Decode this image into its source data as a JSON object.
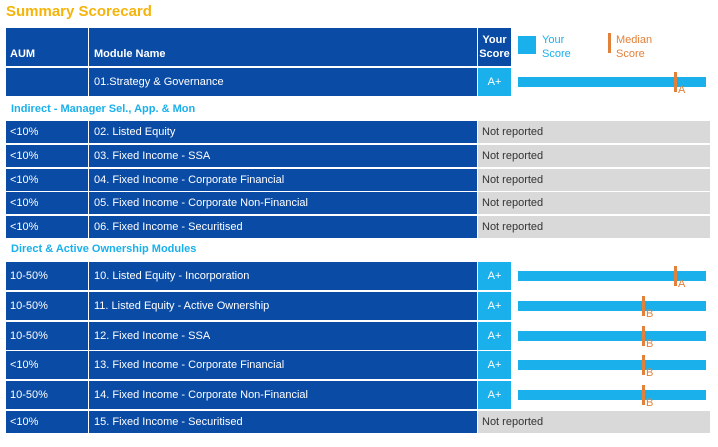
{
  "title": "Summary Scorecard",
  "colors": {
    "title": "#f5b40a",
    "row_blue": "#0a4ba5",
    "score_cyan": "#1ab0ec",
    "section_text": "#1ab0ec",
    "section_bg": "#ffffff",
    "not_reported_bg": "#d9d9d9",
    "median_orange": "#e2813a",
    "legend_text_blue": "#1ab0ec",
    "legend_text_orange": "#e2813a"
  },
  "header": {
    "aum": "AUM",
    "module": "Module Name",
    "score_line1": "Your",
    "score_line2": "Score",
    "legend_your_line1": "Your",
    "legend_your_line2": "Score",
    "legend_median_line1": "Median",
    "legend_median_line2": "Score"
  },
  "rows": [
    {
      "type": "module",
      "aum": "",
      "module": "01.Strategy & Governance",
      "score": "A+",
      "your_score_pct": 1.0,
      "median_pct": 0.83,
      "median_grade": "A"
    },
    {
      "type": "section",
      "label": "Indirect - Manager Sel., App. & Mon"
    },
    {
      "type": "module",
      "aum": "<10%",
      "module": "02. Listed Equity",
      "not_reported": "Not reported"
    },
    {
      "type": "module",
      "aum": "<10%",
      "module": "03. Fixed Income - SSA",
      "not_reported": "Not reported"
    },
    {
      "type": "module",
      "aum": "<10%",
      "module": "04. Fixed Income - Corporate Financial",
      "not_reported": "Not reported"
    },
    {
      "type": "module",
      "aum": "<10%",
      "module": "05. Fixed Income - Corporate Non-Financial",
      "not_reported": "Not reported"
    },
    {
      "type": "module",
      "aum": "<10%",
      "module": "06. Fixed Income - Securitised",
      "not_reported": "Not reported"
    },
    {
      "type": "section",
      "label": "Direct & Active Ownership Modules"
    },
    {
      "type": "module",
      "aum": "10-50%",
      "module": "10. Listed Equity - Incorporation",
      "score": "A+",
      "your_score_pct": 1.0,
      "median_pct": 0.83,
      "median_grade": "A"
    },
    {
      "type": "module",
      "aum": "10-50%",
      "module": "11. Listed Equity - Active Ownership",
      "score": "A+",
      "your_score_pct": 1.0,
      "median_pct": 0.66,
      "median_grade": "B"
    },
    {
      "type": "module",
      "aum": "10-50%",
      "module": "12. Fixed Income - SSA",
      "score": "A+",
      "your_score_pct": 1.0,
      "median_pct": 0.66,
      "median_grade": "B"
    },
    {
      "type": "module",
      "aum": "<10%",
      "module": "13. Fixed Income - Corporate Financial",
      "score": "A+",
      "your_score_pct": 1.0,
      "median_pct": 0.66,
      "median_grade": "B"
    },
    {
      "type": "module",
      "aum": "10-50%",
      "module": "14. Fixed Income - Corporate Non-Financial",
      "score": "A+",
      "your_score_pct": 1.0,
      "median_pct": 0.66,
      "median_grade": "B"
    },
    {
      "type": "module",
      "aum": "<10%",
      "module": "15. Fixed Income - Securitised",
      "not_reported": "Not reported"
    }
  ]
}
